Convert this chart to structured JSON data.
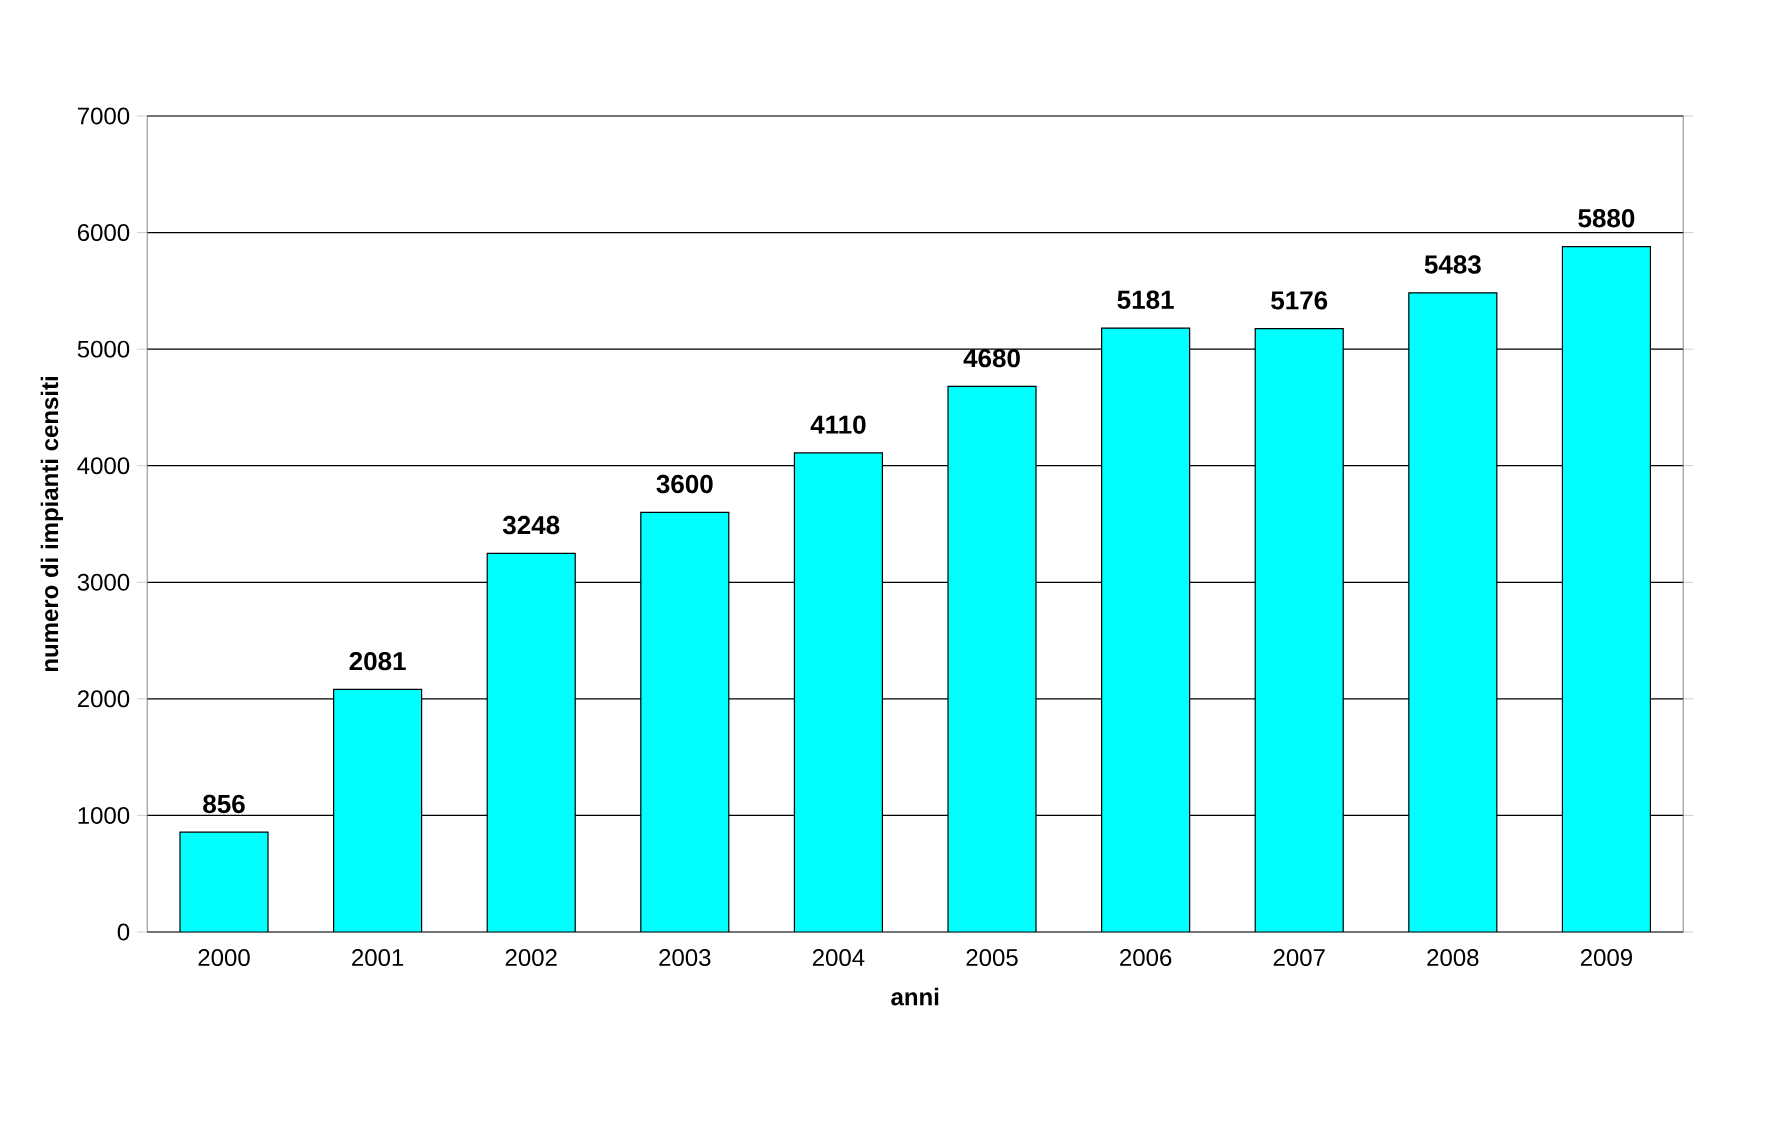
{
  "chart_data": {
    "type": "bar",
    "xlabel": "anni",
    "ylabel": "numero di impianti censiti",
    "categories": [
      "2000",
      "2001",
      "2002",
      "2003",
      "2004",
      "2005",
      "2006",
      "2007",
      "2008",
      "2009"
    ],
    "values": [
      856,
      2081,
      3248,
      3600,
      4110,
      4680,
      5181,
      5176,
      5483,
      5880
    ],
    "color": "#00ffff",
    "ylim": [
      0,
      7000
    ],
    "yticks": [
      0,
      1000,
      2000,
      3000,
      4000,
      5000,
      6000,
      7000
    ],
    "grid": "y",
    "data_labels": true
  }
}
